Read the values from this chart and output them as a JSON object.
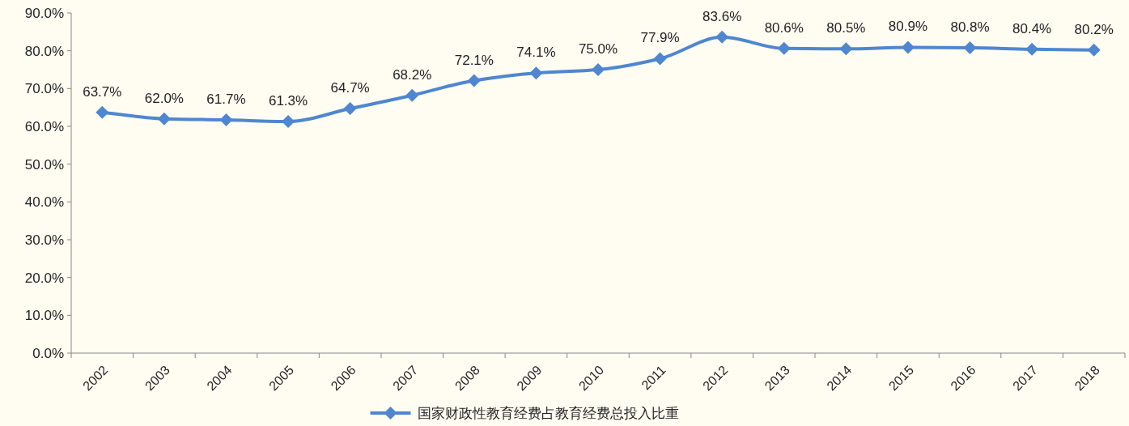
{
  "chart_data": {
    "type": "line",
    "categories": [
      "2002",
      "2003",
      "2004",
      "2005",
      "2006",
      "2007",
      "2008",
      "2009",
      "2010",
      "2011",
      "2012",
      "2013",
      "2014",
      "2015",
      "2016",
      "2017",
      "2018"
    ],
    "series": [
      {
        "name": "国家财政性教育经费占教育经费总投入比重",
        "color": "#4f86d0",
        "values": [
          63.7,
          62.0,
          61.7,
          61.3,
          64.7,
          68.2,
          72.1,
          74.1,
          75.0,
          77.9,
          83.6,
          80.6,
          80.5,
          80.9,
          80.8,
          80.4,
          80.2
        ],
        "value_labels": [
          "63.7%",
          "62.0%",
          "61.7%",
          "61.3%",
          "64.7%",
          "68.2%",
          "72.1%",
          "74.1%",
          "75.0%",
          "77.9%",
          "83.6%",
          "80.6%",
          "80.5%",
          "80.9%",
          "80.8%",
          "80.4%",
          "80.2%"
        ]
      }
    ],
    "ylim": [
      0,
      90
    ],
    "yticks": [
      {
        "value": 0,
        "label": "0.0%"
      },
      {
        "value": 10,
        "label": "10.0%"
      },
      {
        "value": 20,
        "label": "20.0%"
      },
      {
        "value": 30,
        "label": "30.0%"
      },
      {
        "value": 40,
        "label": "40.0%"
      },
      {
        "value": 50,
        "label": "50.0%"
      },
      {
        "value": 60,
        "label": "60.0%"
      },
      {
        "value": 70,
        "label": "70.0%"
      },
      {
        "value": 80,
        "label": "80.0%"
      },
      {
        "value": 90,
        "label": "90.0%"
      }
    ],
    "grid": false,
    "legend": "bottom",
    "marker": "diamond",
    "line_style": "solid"
  }
}
